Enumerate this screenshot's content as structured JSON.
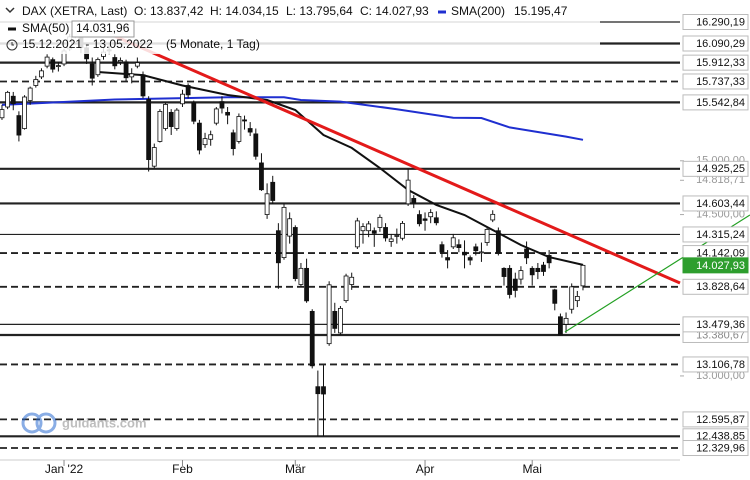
{
  "chart_data": {
    "type": "candlestick",
    "header": {
      "title": "DAX (XETRA, Last)",
      "open": "O: 13.837,42",
      "high": "H: 14.034,15",
      "low": "L: 13.795,64",
      "close": "C: 14.027,93",
      "range": "15.12.2021 - 13.05.2022",
      "period": "(5 Monate, 1 Tag)"
    },
    "watermark": "guidants.com",
    "xlim": [
      -0.35,
      120.2
    ],
    "ylim": [
      12218.5,
      16494.7
    ],
    "xticks": [
      {
        "value": 11,
        "label": "Jan '22"
      },
      {
        "value": 32,
        "label": "Feb"
      },
      {
        "value": 52,
        "label": "Mär"
      },
      {
        "value": 75,
        "label": "Apr"
      },
      {
        "value": 94,
        "label": "Mai"
      }
    ],
    "yticks": [
      {
        "value": 15000,
        "label": "15.000,00"
      },
      {
        "value": 14818.71,
        "label": "14.818,71"
      },
      {
        "value": 14500,
        "label": "14.500,00"
      },
      {
        "value": 13000,
        "label": "13.000,00"
      }
    ],
    "levels": [
      {
        "value": 16290.19,
        "label": "16.290,19",
        "style": "solid"
      },
      {
        "value": 16090.29,
        "label": "16.090,29",
        "style": "bold"
      },
      {
        "value": 15912.33,
        "label": "15.912,33",
        "style": "bold"
      },
      {
        "value": 15737.33,
        "label": "15.737,33",
        "style": "dashed"
      },
      {
        "value": 15542.84,
        "label": "15.542,84",
        "style": "bold"
      },
      {
        "value": 14925.25,
        "label": "14.925,25",
        "style": "bold"
      },
      {
        "value": 14603.44,
        "label": "14.603,44",
        "style": "bold"
      },
      {
        "value": 14315.24,
        "label": "14.315,24",
        "style": "solid"
      },
      {
        "value": 14142.09,
        "label": "14.142,09",
        "style": "dashed"
      },
      {
        "value": 13828.64,
        "label": "13.828,64",
        "style": "dashed"
      },
      {
        "value": 13380.67,
        "label": "13.380,67",
        "style": "bold",
        "label_color": "#888888"
      },
      {
        "value": 13479.36,
        "label": "13.479,36",
        "style": "solid"
      },
      {
        "value": 13106.78,
        "label": "13.106,78",
        "style": "dashed"
      },
      {
        "value": 12595.87,
        "label": "12.595,87",
        "style": "dashed"
      },
      {
        "value": 12438.85,
        "label": "12.438,85",
        "style": "bold"
      },
      {
        "value": 12329.96,
        "label": "12.329,96",
        "style": "dashed"
      }
    ],
    "current": {
      "value": 14027.93,
      "label": "14.027,93",
      "color": "#2e9e2e"
    },
    "sma": [
      {
        "name": "SMA(200)",
        "color": "#1f2fd0",
        "value_label": "15.195,47",
        "x": [
          0,
          10,
          20,
          30,
          40,
          50,
          53,
          60,
          70,
          80,
          85,
          90,
          100,
          103
        ],
        "values": [
          15520,
          15545,
          15570,
          15580,
          15590,
          15590,
          15565,
          15550,
          15480,
          15400,
          15398,
          15310,
          15225,
          15195.47
        ]
      },
      {
        "name": "SMA(50)",
        "color": "#111111",
        "value_label": "14.031,96",
        "x": [
          17,
          25,
          32,
          40,
          47,
          52,
          57,
          62,
          67,
          72,
          77,
          82,
          87,
          92,
          97,
          103
        ],
        "values": [
          15825,
          15797,
          15700,
          15612,
          15565,
          15472,
          15240,
          15120,
          14933,
          14729,
          14590,
          14496,
          14357,
          14217,
          14105,
          14031.96
        ]
      }
    ],
    "trendlines": [
      {
        "color": "#e31a1a",
        "x": [
          14.7,
          120.2
        ],
        "values": [
          16280,
          13864
        ]
      },
      {
        "color": "#22a022",
        "x": [
          99.8,
          132.6
        ],
        "values": [
          13408,
          14496
        ]
      }
    ],
    "ohlc": [
      [
        15400,
        15520,
        15380,
        15476
      ],
      [
        15500,
        15650,
        15480,
        15636
      ],
      [
        15600,
        15640,
        15470,
        15531
      ],
      [
        15420,
        15460,
        15180,
        15239
      ],
      [
        15300,
        15610,
        15290,
        15593
      ],
      [
        15560,
        15690,
        15520,
        15676
      ],
      [
        15700,
        15790,
        15680,
        15756
      ],
      [
        15780,
        15860,
        15760,
        15836
      ],
      [
        15880,
        15990,
        15860,
        15964
      ],
      [
        15940,
        15960,
        15820,
        15852
      ],
      [
        15880,
        15920,
        15830,
        15885
      ],
      [
        15900,
        16040,
        15880,
        16021
      ],
      [
        16040,
        16180,
        16020,
        16152
      ],
      [
        16160,
        16290,
        16140,
        16271
      ],
      [
        16200,
        16220,
        16000,
        16052
      ],
      [
        16050,
        16090,
        15900,
        15948
      ],
      [
        15900,
        15960,
        15700,
        15768
      ],
      [
        15800,
        15960,
        15780,
        15942
      ],
      [
        15970,
        16050,
        15940,
        16010
      ],
      [
        16030,
        16080,
        15990,
        16031
      ],
      [
        15960,
        15990,
        15850,
        15883
      ],
      [
        15920,
        15960,
        15890,
        15933
      ],
      [
        15920,
        15940,
        15740,
        15772
      ],
      [
        15780,
        15860,
        15720,
        15809
      ],
      [
        15880,
        15960,
        15860,
        15912
      ],
      [
        15800,
        15830,
        15580,
        15603
      ],
      [
        15570,
        15600,
        14900,
        15011
      ],
      [
        14950,
        15160,
        14930,
        15123
      ],
      [
        15180,
        15480,
        15170,
        15459
      ],
      [
        15300,
        15540,
        15280,
        15524
      ],
      [
        15450,
        15480,
        15240,
        15318
      ],
      [
        15300,
        15490,
        15280,
        15471
      ],
      [
        15530,
        15660,
        15500,
        15619
      ],
      [
        15700,
        15720,
        15580,
        15613
      ],
      [
        15540,
        15560,
        15340,
        15368
      ],
      [
        15350,
        15380,
        15060,
        15100
      ],
      [
        15150,
        15260,
        15120,
        15206
      ],
      [
        15200,
        15280,
        15140,
        15242
      ],
      [
        15350,
        15500,
        15330,
        15482
      ],
      [
        15550,
        15600,
        15440,
        15490
      ],
      [
        15450,
        15500,
        15340,
        15425
      ],
      [
        15260,
        15290,
        15050,
        15113
      ],
      [
        15180,
        15440,
        15160,
        15412
      ],
      [
        15380,
        15420,
        15290,
        15370
      ],
      [
        15300,
        15360,
        15230,
        15267
      ],
      [
        15250,
        15300,
        15010,
        15042
      ],
      [
        14980,
        15070,
        14720,
        14731
      ],
      [
        14500,
        14790,
        14460,
        14693
      ],
      [
        14800,
        14860,
        14600,
        14631
      ],
      [
        14350,
        14420,
        13810,
        14052
      ],
      [
        14100,
        14600,
        14080,
        14567
      ],
      [
        14300,
        14520,
        14230,
        14461
      ],
      [
        14380,
        14400,
        13880,
        13905
      ],
      [
        13850,
        14050,
        13830,
        14000
      ],
      [
        14000,
        14090,
        13680,
        13698
      ],
      [
        13600,
        13620,
        13070,
        13094
      ],
      [
        12900,
        13050,
        12440,
        12835
      ],
      [
        12900,
        13100,
        12439,
        12832
      ],
      [
        13300,
        13880,
        13280,
        13847
      ],
      [
        13600,
        13680,
        13400,
        13442
      ],
      [
        13400,
        13650,
        13380,
        13628
      ],
      [
        13700,
        13950,
        13680,
        13929
      ],
      [
        13850,
        13960,
        13800,
        13917
      ],
      [
        14200,
        14470,
        14180,
        14441
      ],
      [
        14350,
        14420,
        14230,
        14388
      ],
      [
        14350,
        14440,
        14290,
        14413
      ],
      [
        14350,
        14380,
        14200,
        14326
      ],
      [
        14380,
        14500,
        14340,
        14474
      ],
      [
        14380,
        14420,
        14250,
        14283
      ],
      [
        14250,
        14320,
        14200,
        14273
      ],
      [
        14300,
        14370,
        14230,
        14306
      ],
      [
        14280,
        14440,
        14260,
        14418
      ],
      [
        14600,
        14925,
        14580,
        14820
      ],
      [
        14650,
        14680,
        14560,
        14606
      ],
      [
        14500,
        14540,
        14390,
        14415
      ],
      [
        14460,
        14520,
        14350,
        14446
      ],
      [
        14480,
        14550,
        14420,
        14518
      ],
      [
        14470,
        14530,
        14400,
        14424
      ],
      [
        14220,
        14250,
        14100,
        14152
      ],
      [
        14100,
        14170,
        14000,
        14078
      ],
      [
        14200,
        14320,
        14180,
        14284
      ],
      [
        14220,
        14270,
        14150,
        14193
      ],
      [
        14150,
        14260,
        14000,
        14125
      ],
      [
        14100,
        14120,
        14030,
        14077
      ],
      [
        14200,
        14230,
        14120,
        14164
      ],
      [
        14150,
        14240,
        14060,
        14153
      ],
      [
        14240,
        14380,
        14210,
        14362
      ],
      [
        14450,
        14540,
        14430,
        14502
      ],
      [
        14350,
        14380,
        14120,
        14142
      ],
      [
        14000,
        14010,
        13840,
        13924
      ],
      [
        14000,
        14030,
        13720,
        13757
      ],
      [
        13900,
        13960,
        13730,
        13795
      ],
      [
        13900,
        14020,
        13850,
        13979
      ],
      [
        14180,
        14250,
        14040,
        14098
      ],
      [
        14000,
        14020,
        13840,
        13940
      ],
      [
        14000,
        14050,
        13900,
        13970
      ],
      [
        14030,
        14060,
        13930,
        13971
      ],
      [
        14120,
        14170,
        14000,
        14052
      ],
      [
        13800,
        13810,
        13610,
        13675
      ],
      [
        13550,
        13580,
        13380,
        13380
      ],
      [
        13480,
        13590,
        13400,
        13535
      ],
      [
        13620,
        13860,
        13580,
        13828
      ],
      [
        13700,
        13790,
        13640,
        13739
      ],
      [
        13837.42,
        14034.15,
        13795.64,
        14027.93
      ]
    ]
  }
}
